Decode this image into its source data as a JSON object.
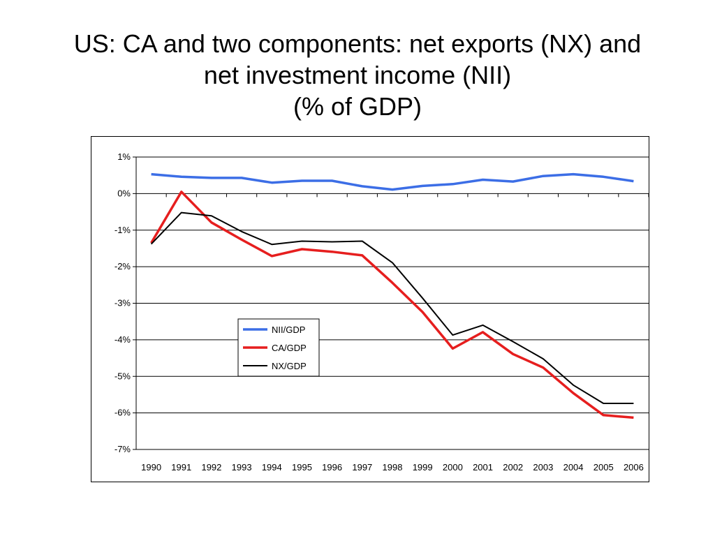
{
  "title": {
    "line1": "US: CA and two components: net exports (NX) and",
    "line2": "net investment income (NII)",
    "line3": "(% of GDP)"
  },
  "chart_data": {
    "type": "line",
    "x": [
      "1990",
      "1991",
      "1992",
      "1993",
      "1994",
      "1995",
      "1996",
      "1997",
      "1998",
      "1999",
      "2000",
      "2001",
      "2002",
      "2003",
      "2004",
      "2005",
      "2006"
    ],
    "ylim": [
      -7,
      1
    ],
    "yticks": [
      1,
      0,
      -1,
      -2,
      -3,
      -4,
      -5,
      -6,
      -7
    ],
    "ytick_labels": [
      "1%",
      "0%",
      "-1%",
      "-2%",
      "-3%",
      "-4%",
      "-5%",
      "-6%",
      "-7%"
    ],
    "grid": "horizontal",
    "legend_position": "center",
    "series": [
      {
        "name": "NII/GDP",
        "color": "#3c6ee6",
        "values": [
          0.53,
          0.46,
          0.43,
          0.43,
          0.3,
          0.35,
          0.35,
          0.2,
          0.11,
          0.21,
          0.26,
          0.38,
          0.33,
          0.48,
          0.53,
          0.46,
          0.34
        ]
      },
      {
        "name": "CA/GDP",
        "color": "#e61e1e",
        "values": [
          -1.35,
          0.05,
          -0.79,
          -1.26,
          -1.71,
          -1.52,
          -1.59,
          -1.69,
          -2.44,
          -3.24,
          -4.24,
          -3.79,
          -4.39,
          -4.76,
          -5.46,
          -6.06,
          -6.13
        ]
      },
      {
        "name": "NX/GDP",
        "color": "#000000",
        "values": [
          -1.38,
          -0.52,
          -0.61,
          -1.04,
          -1.39,
          -1.3,
          -1.32,
          -1.3,
          -1.89,
          -2.86,
          -3.87,
          -3.6,
          -4.05,
          -4.52,
          -5.24,
          -5.74,
          -5.74
        ]
      }
    ]
  }
}
